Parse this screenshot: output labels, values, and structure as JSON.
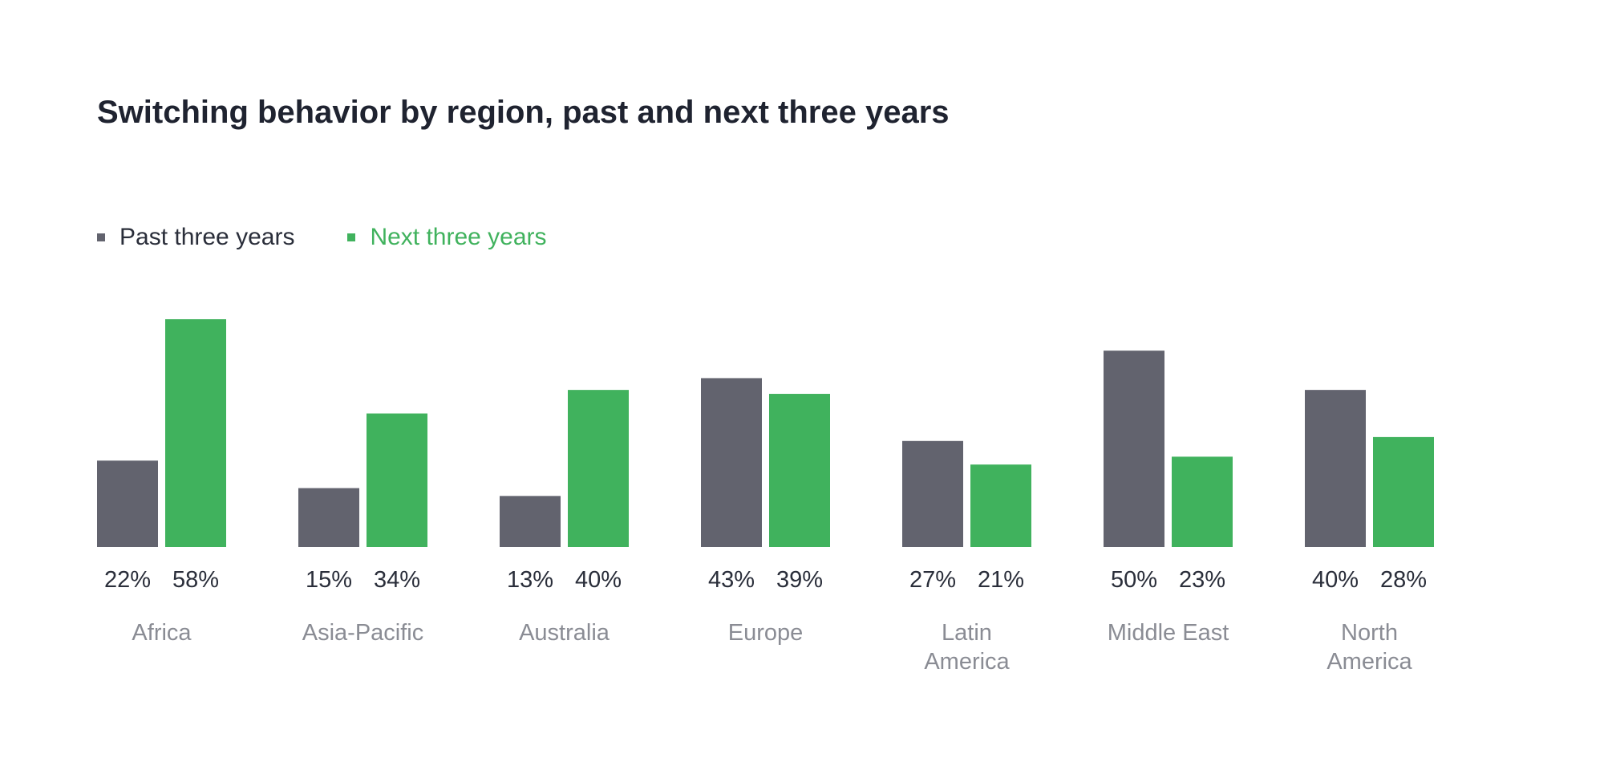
{
  "chart_data": {
    "type": "bar",
    "title": "Switching behavior by region, past and next three years",
    "categories": [
      [
        "Africa"
      ],
      [
        "Asia-Pacific"
      ],
      [
        "Australia"
      ],
      [
        "Europe"
      ],
      [
        "Latin",
        "America"
      ],
      [
        "Middle East"
      ],
      [
        "North",
        "America"
      ]
    ],
    "series": [
      {
        "name": "Past three years",
        "color": "#62636e",
        "values": [
          22,
          15,
          13,
          43,
          27,
          50,
          40
        ],
        "labels": [
          "22%",
          "15%",
          "13%",
          "43%",
          "27%",
          "50%",
          "40%"
        ]
      },
      {
        "name": "Next three years",
        "color": "#40b25d",
        "values": [
          58,
          34,
          40,
          39,
          21,
          23,
          28
        ],
        "labels": [
          "58%",
          "34%",
          "40%",
          "39%",
          "21%",
          "23%",
          "28%"
        ]
      }
    ],
    "value_unit": "%",
    "ylim": [
      0,
      58
    ],
    "grid": false,
    "legend_position": "top-left"
  }
}
